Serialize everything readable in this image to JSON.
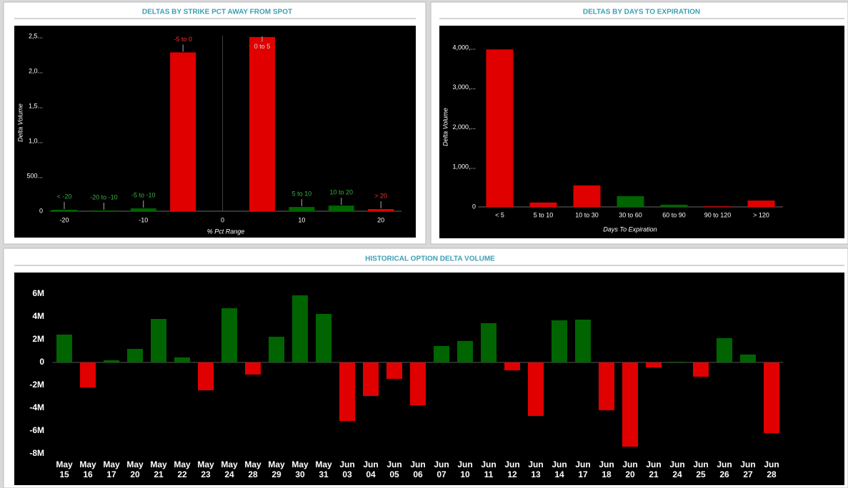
{
  "chart_data": [
    {
      "type": "bar",
      "title": "DELTAS BY STRIKE PCT AWAY FROM SPOT",
      "xlabel": "% Pct Range",
      "ylabel": "Delta Volume",
      "x": [
        -20,
        -15,
        -10,
        -5,
        5,
        10,
        15,
        20
      ],
      "categories": [
        "< -20",
        "-20 to -10",
        "-5 to -10",
        "-5 to 0",
        "0 to 5",
        "5 to 10",
        "10 to 20",
        "> 20"
      ],
      "values": [
        20000,
        10000,
        40000,
        2270000,
        2490000,
        60000,
        80000,
        30000
      ],
      "colors": [
        "#006400",
        "#006400",
        "#006400",
        "#e00000",
        "#e00000",
        "#006400",
        "#006400",
        "#e00000"
      ],
      "label_colors": [
        "#3cb043",
        "#3cb043",
        "#3cb043",
        "#ff3030",
        "#ff3030",
        "#3cb043",
        "#3cb043",
        "#ff3030"
      ],
      "xlim": [
        -21.8,
        22.6
      ],
      "xticks": [
        -20,
        -10,
        0,
        10,
        20
      ],
      "ylim": [
        0,
        2560000
      ],
      "yticks": [
        0,
        {
          "value": 500000,
          "label": "500..."
        },
        {
          "value": 1000000,
          "label": "1,0..."
        },
        {
          "value": 1500000,
          "label": "1,5..."
        },
        {
          "value": 2000000,
          "label": "2,0..."
        },
        {
          "value": 2500000,
          "label": "2,5..."
        }
      ]
    },
    {
      "type": "bar",
      "title": "DELTAS BY DAYS TO EXPIRATION",
      "xlabel": "Days To Expiration",
      "ylabel": "Delta Volume",
      "categories": [
        "< 5",
        "5 to 10",
        "10 to 30",
        "30 to 60",
        "60 to 90",
        "90 to 120",
        "> 120"
      ],
      "values": [
        3960000,
        110000,
        540000,
        270000,
        55000,
        15000,
        160000
      ],
      "colors": [
        "#e00000",
        "#e00000",
        "#e00000",
        "#006400",
        "#006400",
        "#e00000",
        "#e00000"
      ],
      "ylim": [
        0,
        4400000
      ],
      "yticks": [
        0,
        {
          "value": 1000000,
          "label": "1,000,..."
        },
        {
          "value": 2000000,
          "label": "2,000,..."
        },
        {
          "value": 3000000,
          "label": "3,000,..."
        },
        {
          "value": 4000000,
          "label": "4,000,..."
        }
      ]
    },
    {
      "type": "bar",
      "title": "HISTORICAL OPTION DELTA VOLUME",
      "categories": [
        "May 15",
        "May 16",
        "May 17",
        "May 20",
        "May 21",
        "May 22",
        "May 23",
        "May 24",
        "May 28",
        "May 29",
        "May 30",
        "May 31",
        "Jun 03",
        "Jun 04",
        "Jun 05",
        "Jun 06",
        "Jun 07",
        "Jun 10",
        "Jun 11",
        "Jun 12",
        "Jun 13",
        "Jun 14",
        "Jun 17",
        "Jun 18",
        "Jun 20",
        "Jun 21",
        "Jun 24",
        "Jun 25",
        "Jun 26",
        "Jun 27",
        "Jun 28"
      ],
      "values": [
        2440000,
        -2190000,
        190000,
        1190000,
        3810000,
        440000,
        -2440000,
        4750000,
        -1060000,
        2250000,
        5880000,
        4250000,
        -5130000,
        -2940000,
        -1440000,
        -3750000,
        1440000,
        1880000,
        3440000,
        -690000,
        -4690000,
        3690000,
        3750000,
        -4190000,
        -7380000,
        -440000,
        60000,
        -1250000,
        2130000,
        690000,
        -6190000
      ],
      "positive_color": "#006400",
      "negative_color": "#e00000",
      "ylim": [
        -8250000,
        7875000
      ],
      "yticks": [
        {
          "value": -8000000,
          "label": "-8M"
        },
        {
          "value": -6000000,
          "label": "-6M"
        },
        {
          "value": -4000000,
          "label": "-4M"
        },
        {
          "value": -2000000,
          "label": "-2M"
        },
        0,
        {
          "value": 2000000,
          "label": "2M"
        },
        {
          "value": 4000000,
          "label": "4M"
        },
        {
          "value": 6000000,
          "label": "6M"
        }
      ]
    }
  ]
}
